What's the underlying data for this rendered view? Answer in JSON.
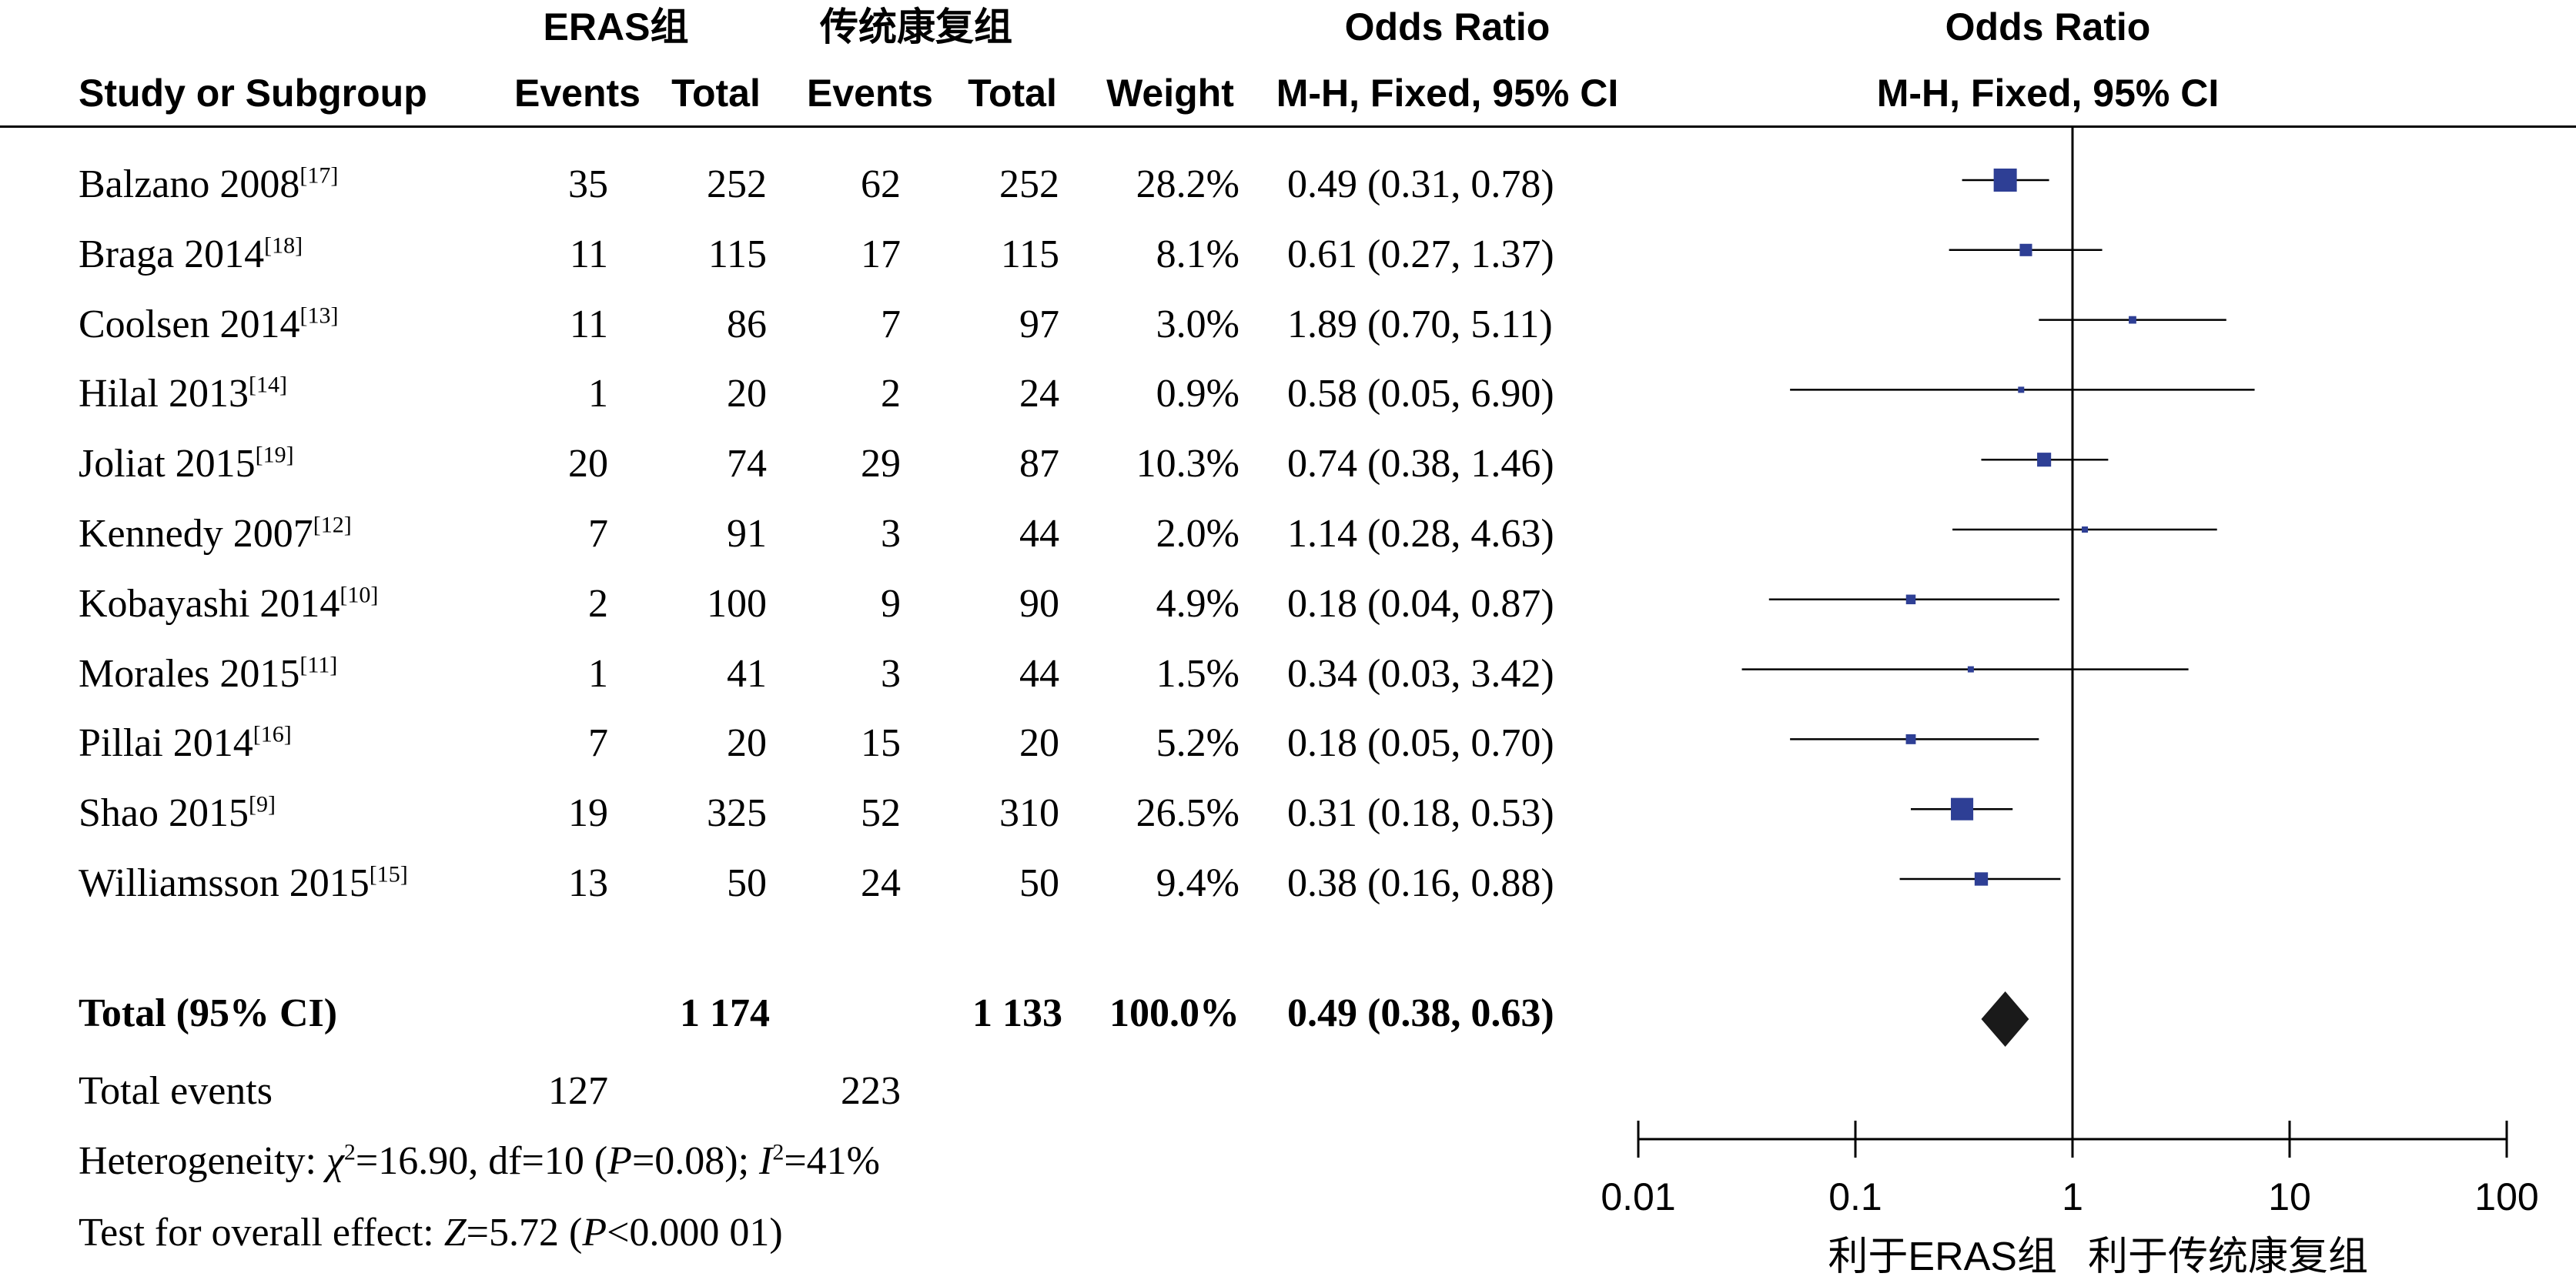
{
  "headers": {
    "group1_name": "ERAS组",
    "group2_name": "传统康复组",
    "or_top": "Odds Ratio",
    "study": "Study or Subgroup",
    "events": "Events",
    "total": "Total",
    "weight": "Weight",
    "method": "M-H, Fixed, 95% CI",
    "plot_top": "Odds Ratio",
    "plot_method": "M-H, Fixed, 95% CI"
  },
  "summary": {
    "total_label": "Total (95% CI)",
    "total_e1": "1 174",
    "total_e2": "1 133",
    "total_weight": "100.0%",
    "total_ci": "0.49 (0.38, 0.63)",
    "events_label": "Total events",
    "events1": "127",
    "events2": "223",
    "het_prefix": "Heterogeneity: ",
    "het_chi": "χ",
    "het_mid": "=16.90, df=10 (",
    "het_p": "P",
    "het_pval": "=0.08); ",
    "het_i": "I",
    "het_ival": "=41%",
    "test_prefix": "Test for overall effect: ",
    "test_z": "Z",
    "test_zval": "=5.72 (",
    "test_p": "P",
    "test_pval": "<0.000 01)"
  },
  "axis": {
    "ticks": [
      "0.01",
      "0.1",
      "1",
      "10",
      "100"
    ],
    "favours_left": "利于ERAS组",
    "favours_right": "利于传统康复组"
  },
  "chart_data": {
    "type": "forest",
    "x_scale": "log",
    "xlim": [
      0.01,
      100
    ],
    "null_line": 1,
    "colors": {
      "marker": "#2e3f95",
      "diamond": "#1a1a1a",
      "line": "#000000"
    },
    "studies": [
      {
        "name": "Balzano 2008",
        "ref": "[17]",
        "e1": 35,
        "n1": 252,
        "e2": 62,
        "n2": 252,
        "weight": "28.2%",
        "ci_text": "0.49 (0.31, 0.78)",
        "or": 0.49,
        "lo": 0.31,
        "hi": 0.78,
        "w": 28.2
      },
      {
        "name": "Braga 2014",
        "ref": "[18]",
        "e1": 11,
        "n1": 115,
        "e2": 17,
        "n2": 115,
        "weight": "8.1%",
        "ci_text": "0.61 (0.27, 1.37)",
        "or": 0.61,
        "lo": 0.27,
        "hi": 1.37,
        "w": 8.1
      },
      {
        "name": "Coolsen 2014",
        "ref": "[13]",
        "e1": 11,
        "n1": 86,
        "e2": 7,
        "n2": 97,
        "weight": "3.0%",
        "ci_text": "1.89 (0.70, 5.11)",
        "or": 1.89,
        "lo": 0.7,
        "hi": 5.11,
        "w": 3.0
      },
      {
        "name": "Hilal 2013",
        "ref": "[14]",
        "e1": 1,
        "n1": 20,
        "e2": 2,
        "n2": 24,
        "weight": "0.9%",
        "ci_text": "0.58 (0.05, 6.90)",
        "or": 0.58,
        "lo": 0.05,
        "hi": 6.9,
        "w": 0.9
      },
      {
        "name": "Joliat 2015",
        "ref": "[19]",
        "e1": 20,
        "n1": 74,
        "e2": 29,
        "n2": 87,
        "weight": "10.3%",
        "ci_text": "0.74 (0.38, 1.46)",
        "or": 0.74,
        "lo": 0.38,
        "hi": 1.46,
        "w": 10.3
      },
      {
        "name": "Kennedy 2007",
        "ref": "[12]",
        "e1": 7,
        "n1": 91,
        "e2": 3,
        "n2": 44,
        "weight": "2.0%",
        "ci_text": "1.14 (0.28, 4.63)",
        "or": 1.14,
        "lo": 0.28,
        "hi": 4.63,
        "w": 2.0
      },
      {
        "name": "Kobayashi 2014",
        "ref": "[10]",
        "e1": 2,
        "n1": 100,
        "e2": 9,
        "n2": 90,
        "weight": "4.9%",
        "ci_text": "0.18 (0.04, 0.87)",
        "or": 0.18,
        "lo": 0.04,
        "hi": 0.87,
        "w": 4.9
      },
      {
        "name": "Morales 2015",
        "ref": "[11]",
        "e1": 1,
        "n1": 41,
        "e2": 3,
        "n2": 44,
        "weight": "1.5%",
        "ci_text": "0.34 (0.03, 3.42)",
        "or": 0.34,
        "lo": 0.03,
        "hi": 3.42,
        "w": 1.5
      },
      {
        "name": "Pillai 2014",
        "ref": "[16]",
        "e1": 7,
        "n1": 20,
        "e2": 15,
        "n2": 20,
        "weight": "5.2%",
        "ci_text": "0.18 (0.05, 0.70)",
        "or": 0.18,
        "lo": 0.05,
        "hi": 0.7,
        "w": 5.2
      },
      {
        "name": "Shao 2015",
        "ref": "[9]",
        "e1": 19,
        "n1": 325,
        "e2": 52,
        "n2": 310,
        "weight": "26.5%",
        "ci_text": "0.31 (0.18, 0.53)",
        "or": 0.31,
        "lo": 0.18,
        "hi": 0.53,
        "w": 26.5
      },
      {
        "name": "Williamsson 2015",
        "ref": "[15]",
        "e1": 13,
        "n1": 50,
        "e2": 24,
        "n2": 50,
        "weight": "9.4%",
        "ci_text": "0.38 (0.16, 0.88)",
        "or": 0.38,
        "lo": 0.16,
        "hi": 0.88,
        "w": 9.4
      }
    ],
    "pooled": {
      "or": 0.49,
      "lo": 0.38,
      "hi": 0.63
    }
  }
}
